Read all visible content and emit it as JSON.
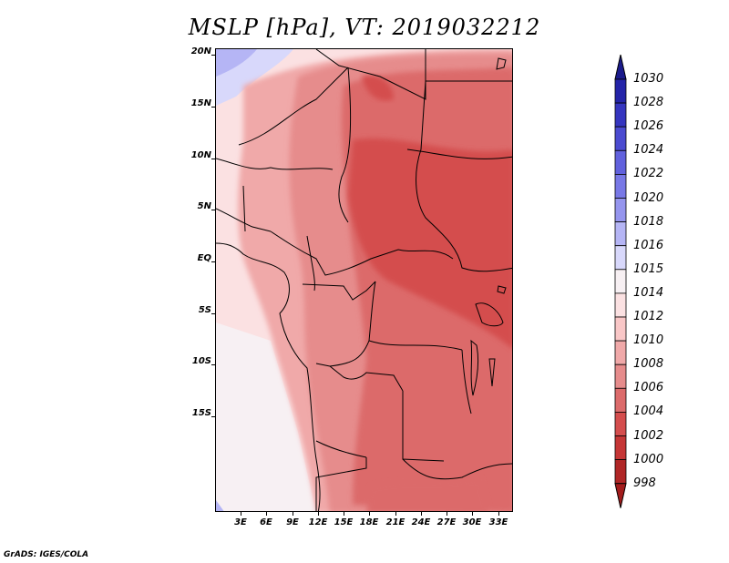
{
  "title": "MSLP [hPa], VT: 2019032212",
  "credit": "GrADS: IGES/COLA",
  "map": {
    "variable": "MSLP",
    "units": "hPa",
    "valid_time": "2019032212",
    "y_axis_labels": [
      "20N",
      "15N",
      "10N",
      "5N",
      "EQ",
      "5S",
      "10S",
      "15S"
    ],
    "x_axis_labels": [
      "3E",
      "6E",
      "9E",
      "12E",
      "15E",
      "18E",
      "21E",
      "24E",
      "27E",
      "30E",
      "33E"
    ]
  },
  "colorbar": {
    "labels": [
      "1030",
      "1028",
      "1026",
      "1024",
      "1022",
      "1020",
      "1018",
      "1016",
      "1015",
      "1014",
      "1012",
      "1010",
      "1008",
      "1006",
      "1004",
      "1002",
      "1000",
      "998"
    ],
    "colors": [
      "#1b1b8c",
      "#2424a8",
      "#3535bf",
      "#4b4bd0",
      "#6161dd",
      "#7878e6",
      "#9595ee",
      "#b5b5f5",
      "#d8d8fb",
      "#f7f0f3",
      "#fbe1e2",
      "#f9c7c7",
      "#f0a9a9",
      "#e68c8c",
      "#dc6b6b",
      "#d44d4d",
      "#c53636",
      "#b02626",
      "#a31c1c"
    ],
    "colors_note": "segment colors top (>1030) to bottom (<998)"
  }
}
